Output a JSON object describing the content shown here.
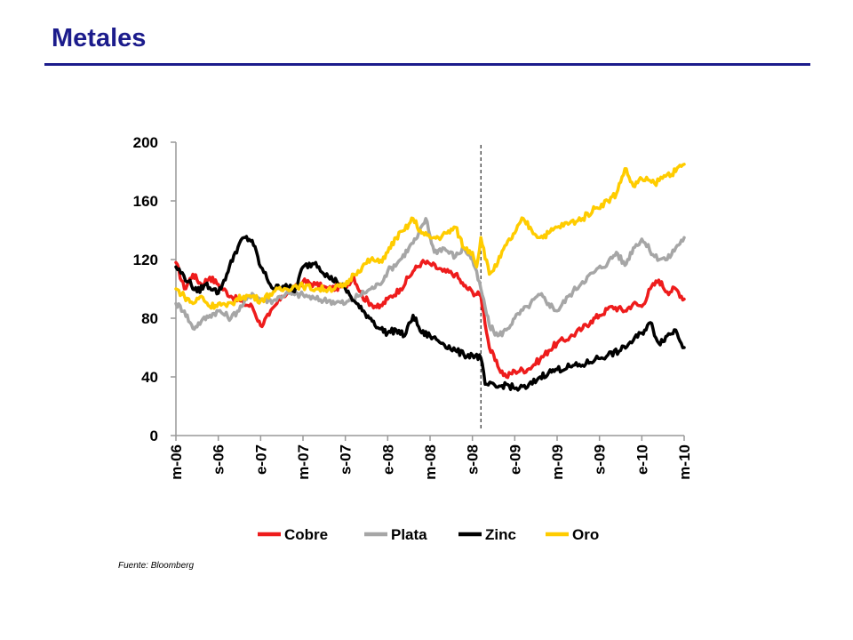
{
  "page": {
    "title": "Metales",
    "source": "Fuente: Bloomberg"
  },
  "colors": {
    "title": "#1c1c8c",
    "Cobre": "#ee1c1c",
    "Plata": "#a6a6a6",
    "Zinc": "#000000",
    "Oro": "#ffcc00"
  },
  "chart_data": {
    "type": "line",
    "title": "",
    "xlabel": "",
    "ylabel": "",
    "ylim": [
      0,
      200
    ],
    "yticks": [
      "0",
      "40",
      "80",
      "120",
      "160",
      "200"
    ],
    "categories": [
      "m-06",
      "s-06",
      "e-07",
      "m-07",
      "s-07",
      "e-08",
      "m-08",
      "s-08",
      "e-09",
      "m-09",
      "s-09",
      "e-10",
      "m-10"
    ],
    "grid": false,
    "legend": "bottom",
    "event_marker_x": 7.2,
    "series": [
      {
        "name": "Cobre",
        "x": [
          0,
          0.2,
          0.4,
          0.6,
          0.8,
          1,
          1.3,
          1.6,
          1.8,
          2,
          2.2,
          2.5,
          2.8,
          3,
          3.3,
          3.6,
          4,
          4.2,
          4.4,
          4.6,
          4.8,
          5,
          5.3,
          5.6,
          5.8,
          6,
          6.3,
          6.6,
          6.8,
          7,
          7.2,
          7.4,
          7.6,
          7.8,
          8,
          8.3,
          8.6,
          8.8,
          9,
          9.3,
          9.6,
          9.8,
          10,
          10.3,
          10.6,
          10.8,
          11,
          11.2,
          11.4,
          11.6,
          11.8,
          12
        ],
        "values": [
          118,
          100,
          110,
          103,
          108,
          103,
          95,
          90,
          88,
          75,
          82,
          95,
          100,
          105,
          103,
          100,
          102,
          108,
          95,
          90,
          87,
          93,
          100,
          112,
          118,
          117,
          112,
          110,
          102,
          98,
          95,
          60,
          47,
          40,
          44,
          45,
          52,
          58,
          63,
          67,
          73,
          78,
          82,
          88,
          85,
          90,
          88,
          100,
          106,
          98,
          100,
          93
        ]
      },
      {
        "name": "Plata",
        "x": [
          0,
          0.2,
          0.4,
          0.6,
          0.8,
          1,
          1.3,
          1.6,
          1.8,
          2,
          2.3,
          2.6,
          2.8,
          3,
          3.3,
          3.6,
          4,
          4.3,
          4.6,
          4.8,
          5,
          5.3,
          5.5,
          5.7,
          5.9,
          6.1,
          6.3,
          6.6,
          6.8,
          7,
          7.2,
          7.4,
          7.6,
          7.8,
          8,
          8.3,
          8.6,
          8.8,
          9,
          9.3,
          9.6,
          9.9,
          10.2,
          10.4,
          10.6,
          10.8,
          11,
          11.3,
          11.6,
          11.8,
          12
        ],
        "values": [
          90,
          85,
          73,
          78,
          82,
          85,
          80,
          90,
          97,
          93,
          92,
          97,
          96,
          96,
          93,
          92,
          90,
          95,
          100,
          103,
          112,
          120,
          128,
          135,
          148,
          125,
          128,
          122,
          128,
          120,
          100,
          75,
          68,
          72,
          80,
          88,
          96,
          90,
          85,
          96,
          105,
          112,
          118,
          125,
          116,
          128,
          134,
          122,
          120,
          128,
          135
        ]
      },
      {
        "name": "Zinc",
        "x": [
          0,
          0.3,
          0.5,
          0.7,
          0.9,
          1,
          1.2,
          1.4,
          1.6,
          1.8,
          2,
          2.3,
          2.6,
          2.8,
          3,
          3.3,
          3.6,
          3.8,
          4,
          4.2,
          4.4,
          4.6,
          4.8,
          5,
          5.2,
          5.4,
          5.6,
          5.8,
          6,
          6.3,
          6.6,
          6.8,
          7,
          7.2,
          7.3,
          7.6,
          7.8,
          8,
          8.3,
          8.6,
          8.8,
          9,
          9.3,
          9.6,
          9.9,
          10.2,
          10.5,
          10.8,
          11,
          11.2,
          11.4,
          11.6,
          11.8,
          12
        ],
        "values": [
          115,
          105,
          98,
          103,
          100,
          97,
          110,
          125,
          135,
          133,
          115,
          100,
          103,
          98,
          115,
          118,
          108,
          105,
          100,
          92,
          85,
          80,
          73,
          70,
          72,
          68,
          82,
          70,
          68,
          63,
          58,
          55,
          55,
          53,
          35,
          33,
          35,
          32,
          33,
          40,
          43,
          45,
          47,
          48,
          52,
          55,
          58,
          65,
          70,
          77,
          63,
          68,
          72,
          60
        ]
      },
      {
        "name": "Oro",
        "x": [
          0,
          0.2,
          0.4,
          0.6,
          0.8,
          1,
          1.2,
          1.4,
          1.6,
          1.8,
          2,
          2.3,
          2.6,
          2.8,
          3,
          3.3,
          3.6,
          4,
          4.2,
          4.4,
          4.6,
          4.8,
          5,
          5.2,
          5.4,
          5.6,
          5.8,
          6,
          6.2,
          6.4,
          6.6,
          6.8,
          7,
          7.1,
          7.2,
          7.4,
          7.6,
          7.8,
          8,
          8.2,
          8.4,
          8.6,
          8.8,
          9,
          9.3,
          9.6,
          9.9,
          10.2,
          10.4,
          10.6,
          10.8,
          11,
          11.3,
          11.6,
          11.8,
          12
        ],
        "values": [
          100,
          95,
          90,
          95,
          88,
          90,
          88,
          92,
          95,
          95,
          92,
          98,
          100,
          102,
          102,
          100,
          100,
          102,
          110,
          115,
          120,
          118,
          125,
          135,
          140,
          148,
          138,
          135,
          135,
          138,
          142,
          128,
          125,
          115,
          135,
          110,
          118,
          130,
          138,
          148,
          140,
          135,
          138,
          142,
          145,
          148,
          155,
          160,
          165,
          182,
          170,
          175,
          172,
          178,
          180,
          185
        ]
      }
    ]
  }
}
